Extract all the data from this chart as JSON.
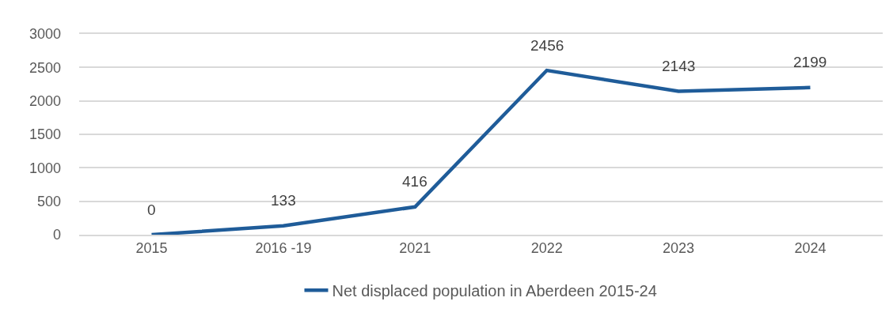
{
  "chart_data": {
    "type": "line",
    "categories": [
      "2015",
      "2016 -19",
      "2021",
      "2022",
      "2023",
      "2024"
    ],
    "series": [
      {
        "name": "Net displaced population in Aberdeen 2015-24",
        "color": "#1f5c99",
        "values": [
          0,
          133,
          416,
          2456,
          2143,
          2199
        ]
      }
    ],
    "ylim": [
      0,
      3000
    ],
    "yticks": [
      0,
      500,
      1000,
      1500,
      2000,
      2500,
      3000
    ],
    "grid": "y",
    "legend": "bottom",
    "data_labels": true,
    "marker": "none",
    "line_style": "solid"
  }
}
